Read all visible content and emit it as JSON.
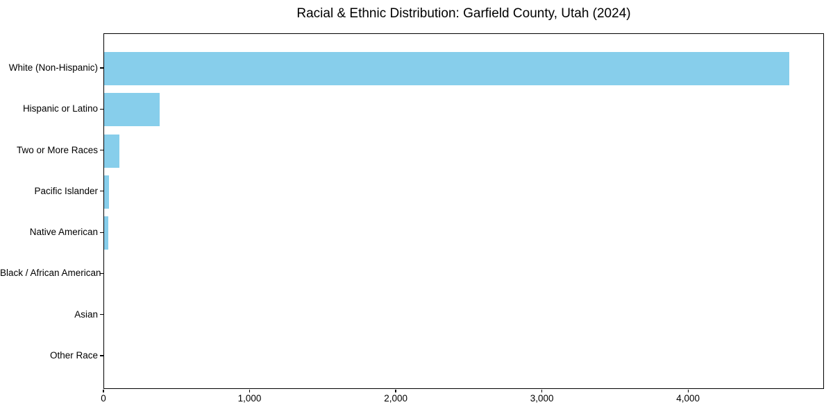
{
  "chart_data": {
    "type": "bar",
    "orientation": "horizontal",
    "title": "Racial & Ethnic Distribution: Garfield County, Utah (2024)",
    "categories": [
      "White (Non-Hispanic)",
      "Hispanic or Latino",
      "Two or More Races",
      "Pacific Islander",
      "Native American",
      "Black / African American",
      "Asian",
      "Other Race"
    ],
    "values": [
      4690,
      380,
      105,
      33,
      27,
      0,
      0,
      0
    ],
    "bar_color": "#87CEEB",
    "text_color": "#000000",
    "xlabel": "",
    "ylabel": "",
    "xlim": [
      0,
      4930
    ],
    "x_ticks": [
      0,
      1000,
      2000,
      3000,
      4000
    ],
    "x_tick_labels": [
      "0",
      "1,000",
      "2,000",
      "3,000",
      "4,000"
    ],
    "grid": false,
    "legend": null,
    "largest_bar_on_top": true
  }
}
